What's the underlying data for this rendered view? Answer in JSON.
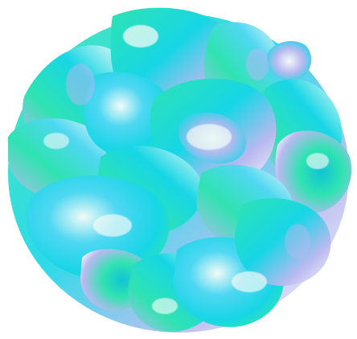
{
  "image": {
    "subject": "holographic-petal-cluster",
    "background_color": "#ffffff",
    "palette": {
      "aqua": "#17d6e6",
      "mint": "#2fe3b1",
      "lavender": "#b9b9f0",
      "pearl": "#f3fbf7",
      "teal": "#10c4d6",
      "sky": "#4fd7f2"
    }
  }
}
